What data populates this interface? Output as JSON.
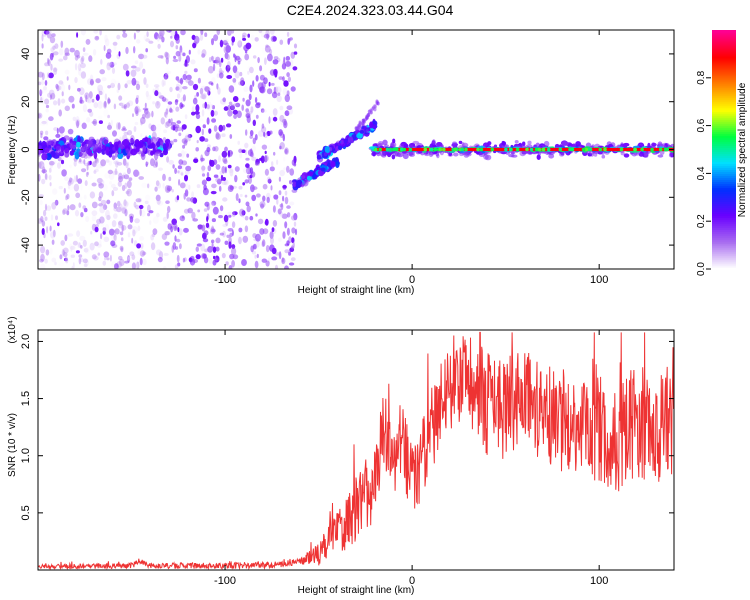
{
  "title": "C2E4.2024.323.03.44.G04",
  "chart_data": [
    {
      "type": "heatmap",
      "title": "C2E4.2024.323.03.44.G04",
      "xlabel": "Height of straight line (km)",
      "ylabel": "Frequency (Hz)",
      "xlim": [
        -200,
        140
      ],
      "ylim": [
        -50,
        50
      ],
      "xticks": [
        -100,
        0,
        100
      ],
      "yticks": [
        -40,
        -20,
        0,
        20,
        40
      ],
      "colorbar": {
        "label": "Normalized spectral amplitude",
        "range": [
          0,
          1
        ],
        "ticks": [
          "0.0",
          "0.2",
          "0.4",
          "0.6",
          "0.8"
        ],
        "tick_values": [
          0.0,
          0.2,
          0.4,
          0.6,
          0.8
        ],
        "colors": [
          "#ffffff",
          "#a86cf0",
          "#6a00ff",
          "#0030ff",
          "#00e0ff",
          "#00ff40",
          "#ffff00",
          "#ff8000",
          "#ff0000",
          "#ff0090"
        ]
      },
      "features": {
        "noise_region_x": [
          -200,
          -62
        ],
        "low_band": {
          "x": [
            -200,
            -128
          ],
          "center_hz": 1,
          "amplitude": 0.3
        },
        "chirp_lower": {
          "x": [
            -63,
            -40
          ],
          "from_hz": -15,
          "to_hz": -5
        },
        "chirp_upper": {
          "x": [
            -50,
            -20
          ],
          "from_hz": -3,
          "to_hz": 10
        },
        "tone": {
          "x": [
            -22,
            140
          ],
          "center_hz": 0,
          "amplitude": 0.9
        }
      }
    },
    {
      "type": "line",
      "xlabel": "Height of straight line (km)",
      "ylabel": "SNR (10 * v/v)",
      "y_multiplier": "(x10⁴)",
      "xlim": [
        -200,
        140
      ],
      "ylim": [
        0,
        2.1
      ],
      "xticks": [
        -100,
        0,
        100
      ],
      "yticks": [
        0.5,
        1.0,
        1.5,
        2.0
      ],
      "ytick_labels": [
        "0.5",
        "1.0",
        "1.5",
        "2.0"
      ],
      "color": "#ee3333",
      "series": [
        {
          "points": [
            [
              -200,
              0.03
            ],
            [
              -150,
              0.04
            ],
            [
              -145,
              0.08
            ],
            [
              -140,
              0.04
            ],
            [
              -100,
              0.04
            ],
            [
              -70,
              0.05
            ],
            [
              -60,
              0.08
            ],
            [
              -50,
              0.15
            ],
            [
              -40,
              0.35
            ],
            [
              -30,
              0.55
            ],
            [
              -20,
              0.8
            ],
            [
              -15,
              1.3
            ],
            [
              -10,
              1.0
            ],
            [
              -5,
              1.1
            ],
            [
              0,
              0.8
            ],
            [
              5,
              0.95
            ],
            [
              10,
              1.3
            ],
            [
              15,
              1.4
            ],
            [
              20,
              1.6
            ],
            [
              30,
              1.7
            ],
            [
              40,
              1.5
            ],
            [
              50,
              1.45
            ],
            [
              60,
              1.55
            ],
            [
              70,
              1.45
            ],
            [
              80,
              1.35
            ],
            [
              90,
              1.35
            ],
            [
              95,
              1.35
            ],
            [
              100,
              1.3
            ],
            [
              110,
              1.2
            ],
            [
              120,
              1.35
            ],
            [
              130,
              1.3
            ],
            [
              140,
              1.35
            ]
          ],
          "spread": [
            [
              -200,
              0.02
            ],
            [
              -60,
              0.03
            ],
            [
              -50,
              0.1
            ],
            [
              -40,
              0.2
            ],
            [
              -30,
              0.3
            ],
            [
              -20,
              0.35
            ],
            [
              0,
              0.35
            ],
            [
              20,
              0.4
            ],
            [
              40,
              0.45
            ],
            [
              80,
              0.45
            ],
            [
              100,
              0.5
            ],
            [
              140,
              0.5
            ]
          ]
        }
      ]
    }
  ]
}
